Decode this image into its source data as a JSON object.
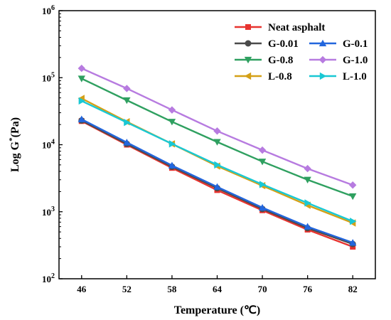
{
  "chart_data": {
    "type": "line",
    "xlabel": "Temperature (℃)",
    "ylabel_main": "Log G",
    "ylabel_sup": "*",
    "ylabel_unit": "(Pa)",
    "x": [
      46,
      52,
      58,
      64,
      70,
      76,
      82
    ],
    "xlim": [
      43,
      85
    ],
    "y_scale": "log",
    "ylim": [
      100,
      1000000
    ],
    "y_ticks": [
      {
        "value": 100,
        "base": "10",
        "exp": "2"
      },
      {
        "value": 1000,
        "base": "10",
        "exp": "3"
      },
      {
        "value": 10000,
        "base": "10",
        "exp": "4"
      },
      {
        "value": 100000,
        "base": "10",
        "exp": "5"
      },
      {
        "value": 1000000,
        "base": "10",
        "exp": "6"
      }
    ],
    "grid": false,
    "legend_position": "top-right",
    "series": [
      {
        "name": "Neat asphalt",
        "color": "#e8332f",
        "marker": "square",
        "values": [
          22500,
          10000,
          4500,
          2100,
          1050,
          540,
          300
        ]
      },
      {
        "name": "G-0.01",
        "color": "#4a4a4a",
        "marker": "circle",
        "values": [
          23000,
          10300,
          4700,
          2250,
          1100,
          570,
          330
        ]
      },
      {
        "name": "G-0.1",
        "color": "#2266dd",
        "marker": "triangle-up",
        "values": [
          24000,
          10800,
          4900,
          2350,
          1150,
          600,
          345
        ]
      },
      {
        "name": "G-0.8",
        "color": "#2fa060",
        "marker": "triangle-down",
        "values": [
          97000,
          46000,
          22000,
          11000,
          5600,
          3000,
          1700
        ]
      },
      {
        "name": "G-1.0",
        "color": "#b77be0",
        "marker": "diamond",
        "values": [
          138000,
          69000,
          33000,
          16000,
          8300,
          4400,
          2500
        ]
      },
      {
        "name": "L-0.8",
        "color": "#d4a017",
        "marker": "triangle-left",
        "values": [
          49000,
          22000,
          10300,
          4800,
          2450,
          1250,
          680
        ]
      },
      {
        "name": "L-1.0",
        "color": "#19c8d4",
        "marker": "triangle-right",
        "values": [
          45000,
          21500,
          10300,
          5000,
          2550,
          1350,
          720
        ]
      }
    ]
  }
}
